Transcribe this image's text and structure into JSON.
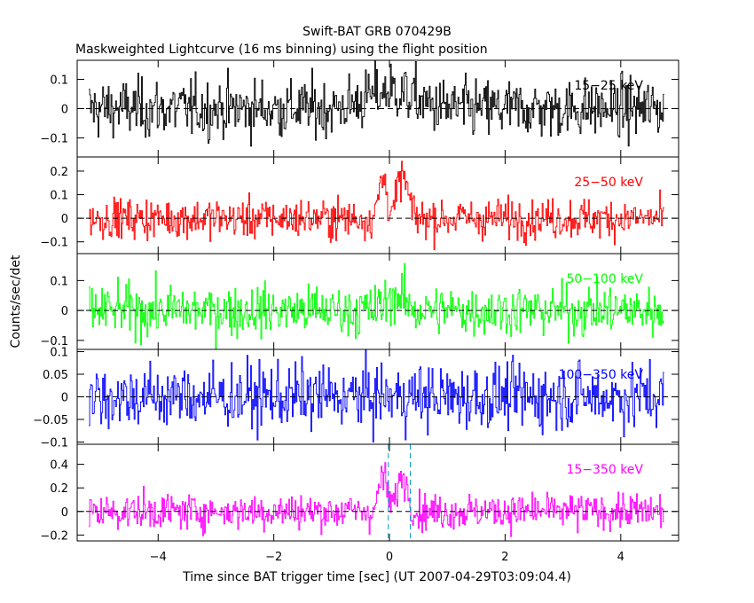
{
  "chart_data": {
    "type": "line",
    "title": "Swift-BAT GRB 070429B",
    "subtitle": "Maskweighted Lightcurve (16 ms binning) using the flight position",
    "xlabel": "Time since BAT trigger time [sec] (UT 2007-04-29T03:09:04.4)",
    "ylabel": "Counts/sec/det",
    "xlim": [
      -5.4,
      5.0
    ],
    "x_ticks": [
      -4,
      -2,
      0,
      2,
      4
    ],
    "x_tick_labels": [
      "−4",
      "−2",
      "0",
      "2",
      "4"
    ],
    "bin_width_s": 0.016,
    "time_range": [
      -5.2,
      4.75
    ],
    "markers_x": [
      -0.02,
      0.36
    ],
    "grid": false,
    "panels": [
      {
        "name": "15-25 keV",
        "label": "15−25 keV",
        "color": "#000000",
        "ylim": [
          -0.165,
          0.165
        ],
        "y_ticks": [
          -0.1,
          0,
          0.1
        ],
        "y_tick_labels": [
          "−0.1",
          "0",
          "0.1"
        ],
        "noise_sigma": 0.05,
        "pulses": [
          {
            "t": 0.0,
            "amp": 0.06,
            "w": 0.4
          }
        ],
        "markers": false
      },
      {
        "name": "25-50 keV",
        "label": "25−50 keV",
        "color": "#ff0000",
        "ylim": [
          -0.15,
          0.26
        ],
        "y_ticks": [
          -0.1,
          0,
          0.1,
          0.2
        ],
        "y_tick_labels": [
          "−0.1",
          "0",
          "0.1",
          "0.2"
        ],
        "noise_sigma": 0.042,
        "pulses": [
          {
            "t": -0.12,
            "amp": 0.17,
            "w": 0.07
          },
          {
            "t": 0.22,
            "amp": 0.18,
            "w": 0.09
          }
        ],
        "markers": false
      },
      {
        "name": "50-100 keV",
        "label": "50−100 keV",
        "color": "#00ff00",
        "ylim": [
          -0.13,
          0.19
        ],
        "y_ticks": [
          -0.1,
          0,
          0.1
        ],
        "y_tick_labels": [
          "−0.1",
          "0",
          "0.1"
        ],
        "noise_sigma": 0.042,
        "pulses": [
          {
            "t": 0.1,
            "amp": 0.05,
            "w": 0.15
          }
        ],
        "markers": false
      },
      {
        "name": "100-350 keV",
        "label": "100−350 keV",
        "color": "#0000ff",
        "ylim": [
          -0.105,
          0.105
        ],
        "y_ticks": [
          -0.1,
          -0.05,
          0,
          0.05,
          0.1
        ],
        "y_tick_labels": [
          "−0.1",
          "−0.05",
          "0",
          "0.05",
          "0.1"
        ],
        "noise_sigma": 0.036,
        "pulses": [],
        "markers": false
      },
      {
        "name": "15-350 keV",
        "label": "15−350 keV",
        "color": "#ff00ff",
        "ylim": [
          -0.25,
          0.57
        ],
        "y_ticks": [
          -0.2,
          0,
          0.2,
          0.4
        ],
        "y_tick_labels": [
          "−0.2",
          "0",
          "0.2",
          "0.4"
        ],
        "noise_sigma": 0.075,
        "pulses": [
          {
            "t": -0.12,
            "amp": 0.3,
            "w": 0.07
          },
          {
            "t": 0.22,
            "amp": 0.3,
            "w": 0.09
          }
        ],
        "markers": true
      }
    ]
  }
}
